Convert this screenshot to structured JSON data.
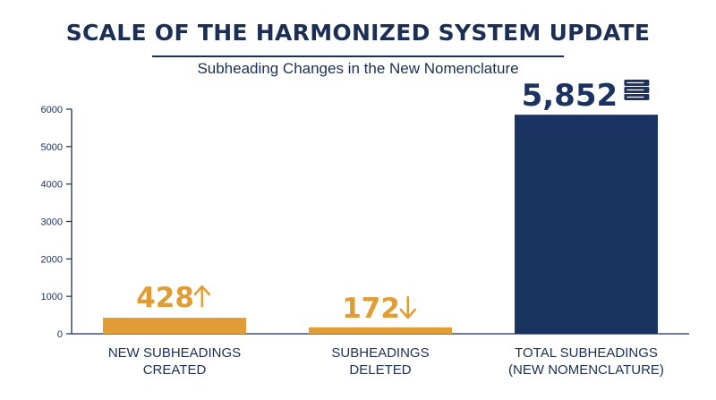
{
  "chart_data": {
    "type": "bar",
    "title": "SCALE OF THE HARMONIZED SYSTEM UPDATE",
    "subtitle": "Subheading Changes in the New Nomenclature",
    "categories": [
      [
        "NEW SUBHEADINGS",
        "CREATED"
      ],
      [
        "SUBHEADINGS",
        "DELETED"
      ],
      [
        "TOTAL SUBHEADINGS",
        "(NEW NOMENCLATURE)"
      ]
    ],
    "values": [
      428,
      172,
      5852
    ],
    "data_labels": [
      "428",
      "172",
      "5,852"
    ],
    "label_icons": [
      "up-arrow-icon",
      "down-arrow-icon",
      "books-icon"
    ],
    "colors": [
      "#e09d36",
      "#e09d36",
      "#1b3360"
    ],
    "label_colors": [
      "#e09d36",
      "#e09d36",
      "#1b3360"
    ],
    "ylim": [
      0,
      6000
    ],
    "yticks": [
      "0",
      "1000",
      "2000",
      "3000",
      "4000",
      "5000",
      "6000"
    ],
    "grid": false
  }
}
